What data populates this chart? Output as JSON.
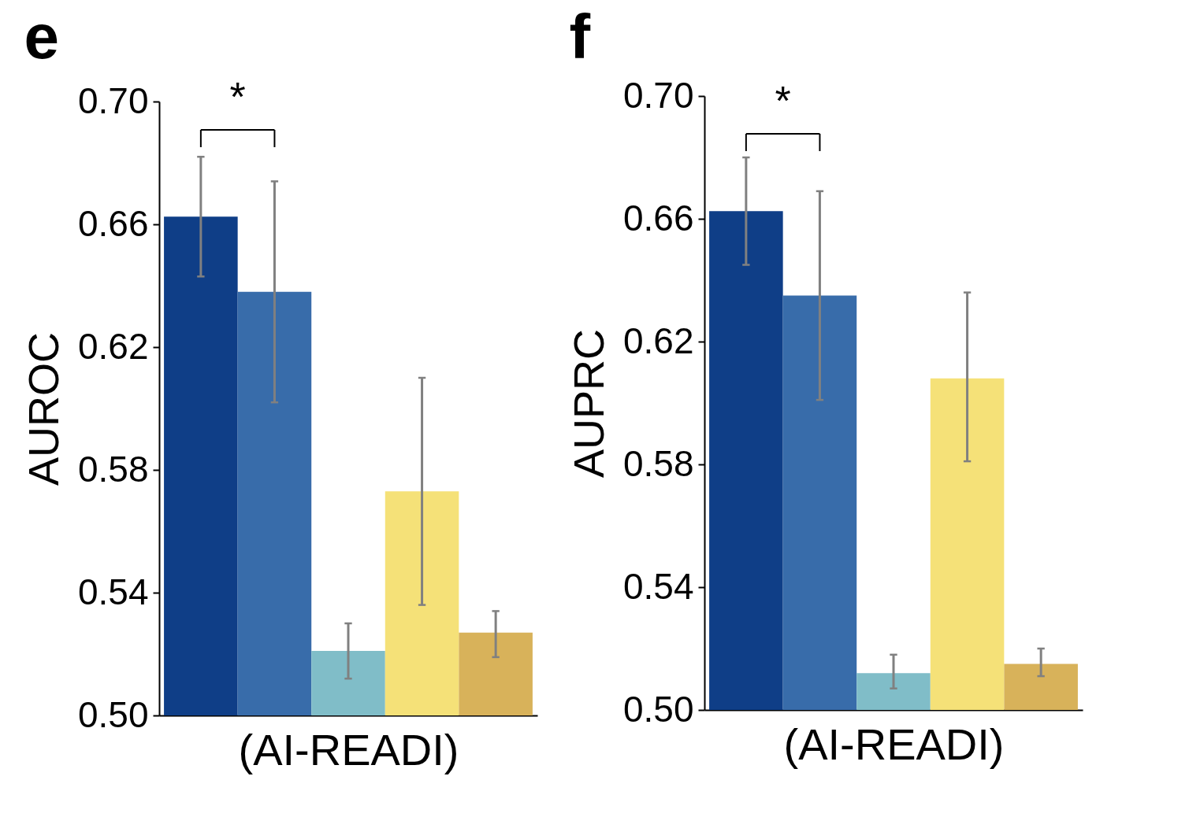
{
  "chart_data": [
    {
      "type": "bar",
      "title": "e",
      "xlabel": "(AI-READI)",
      "ylabel": "AUROC",
      "categories": [
        null,
        null,
        null,
        null,
        null
      ],
      "values": [
        0.6625,
        0.638,
        0.521,
        0.573,
        0.527
      ],
      "colors": [
        "#0f3e87",
        "#386caa",
        "#80bdc8",
        "#f5e178",
        "#d8b25a"
      ],
      "errors": [
        [
          0.643,
          0.682
        ],
        [
          0.602,
          0.674
        ],
        [
          0.512,
          0.53
        ],
        [
          0.536,
          0.61
        ],
        [
          0.519,
          0.534
        ]
      ],
      "ylim": [
        0.5,
        0.7
      ],
      "yticks": [
        {
          "value": 0.5,
          "label": "0.50"
        },
        {
          "value": 0.54,
          "label": "0.54"
        },
        {
          "value": 0.58,
          "label": "0.58"
        },
        {
          "value": 0.62,
          "label": "0.62"
        },
        {
          "value": 0.66,
          "label": "0.66"
        },
        {
          "value": 0.7,
          "label": "0.70"
        }
      ],
      "annotations": [
        "*"
      ]
    },
    {
      "type": "bar",
      "title": "f",
      "xlabel": "(AI-READI)",
      "ylabel": "AUPRC",
      "categories": [
        null,
        null,
        null,
        null,
        null
      ],
      "values": [
        0.6625,
        0.635,
        0.512,
        0.608,
        0.515
      ],
      "colors": [
        "#0f3e87",
        "#386caa",
        "#80bdc8",
        "#f5e178",
        "#d8b25a"
      ],
      "errors": [
        [
          0.645,
          0.68
        ],
        [
          0.601,
          0.669
        ],
        [
          0.507,
          0.518
        ],
        [
          0.581,
          0.636
        ],
        [
          0.511,
          0.52
        ]
      ],
      "ylim": [
        0.5,
        0.7
      ],
      "yticks": [
        {
          "value": 0.5,
          "label": "0.50"
        },
        {
          "value": 0.54,
          "label": "0.54"
        },
        {
          "value": 0.58,
          "label": "0.58"
        },
        {
          "value": 0.62,
          "label": "0.62"
        },
        {
          "value": 0.66,
          "label": "0.66"
        },
        {
          "value": 0.7,
          "label": "0.70"
        }
      ],
      "annotations": [
        "*"
      ]
    }
  ]
}
